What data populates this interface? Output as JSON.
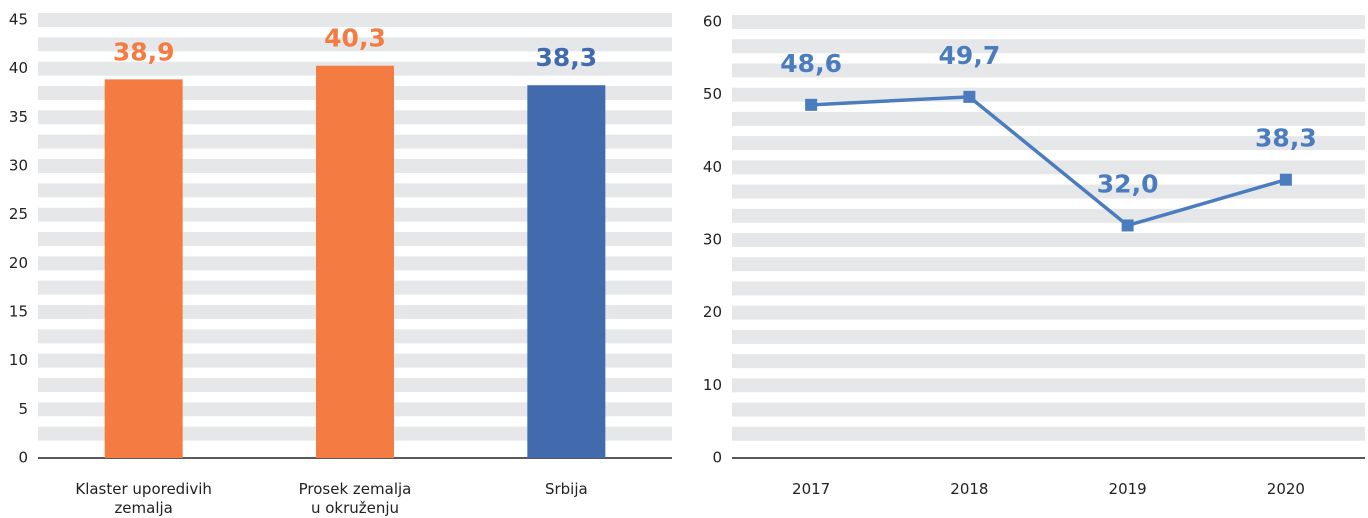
{
  "chart_data": [
    {
      "type": "bar",
      "categories": [
        "Klaster uporedivih\nzemalja",
        "Prosek zemalja\nu okruženju",
        "Srbija"
      ],
      "values": [
        38.9,
        40.3,
        38.3
      ],
      "value_labels": [
        "38,9",
        "40,3",
        "38,3"
      ],
      "colors": [
        "#f47c43",
        "#f47c43",
        "#416bad"
      ],
      "ylim": [
        0,
        45
      ],
      "yticks": [
        0,
        5,
        10,
        15,
        20,
        25,
        30,
        35,
        40,
        45
      ],
      "grid": true
    },
    {
      "type": "line",
      "categories": [
        "2017",
        "2018",
        "2019",
        "2020"
      ],
      "series": [
        {
          "color": "#4a7cbe",
          "values": [
            48.6,
            49.7,
            32.0,
            38.3
          ],
          "value_labels": [
            "48,6",
            "49,7",
            "32,0",
            "38,3"
          ]
        }
      ],
      "ylim": [
        0,
        60
      ],
      "yticks": [
        0,
        10,
        20,
        30,
        40,
        50,
        60
      ],
      "grid": true
    }
  ]
}
